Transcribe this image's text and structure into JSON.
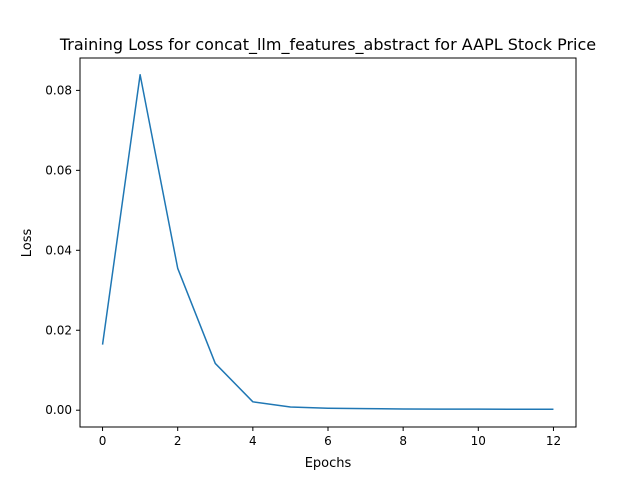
{
  "chart_data": {
    "type": "line",
    "title": "Training Loss for concat_llm_features_abstract for AAPL Stock Price",
    "xlabel": "Epochs",
    "ylabel": "Loss",
    "xlim": [
      -0.6,
      12.6
    ],
    "ylim": [
      -0.0042,
      0.0881
    ],
    "xticks": [
      0,
      2,
      4,
      6,
      8,
      10,
      12
    ],
    "yticks": [
      0.0,
      0.02,
      0.04,
      0.06,
      0.08
    ],
    "ytick_labels": [
      "0.00",
      "0.02",
      "0.04",
      "0.06",
      "0.08"
    ],
    "grid": false,
    "series": [
      {
        "color": "#1f77b4",
        "x": [
          0,
          1,
          2,
          3,
          4,
          5,
          6,
          7,
          8,
          9,
          10,
          11,
          12
        ],
        "values": [
          0.0164,
          0.0839,
          0.0355,
          0.0117,
          0.0021,
          0.0008,
          0.0005,
          0.0004,
          0.0003,
          0.00028,
          0.00026,
          0.00025,
          0.00025
        ]
      }
    ]
  }
}
